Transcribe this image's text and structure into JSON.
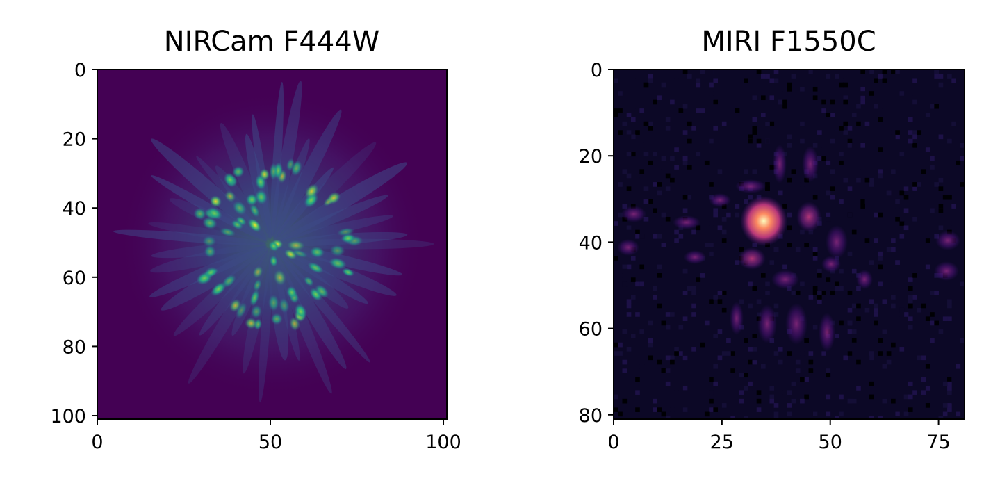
{
  "chart_data": [
    {
      "type": "heatmap",
      "title": "NIRCam F444W",
      "xlabel": "",
      "ylabel": "",
      "xlim": [
        0,
        101
      ],
      "ylim": [
        101,
        0
      ],
      "xticks": [
        0,
        50,
        100
      ],
      "yticks": [
        0,
        20,
        40,
        60,
        80,
        100
      ],
      "xtick_labels": [
        "0",
        "50",
        "100"
      ],
      "ytick_labels": [
        "0",
        "20",
        "40",
        "60",
        "80",
        "100"
      ],
      "colormap": "viridis",
      "grid": false,
      "image_size": [
        101,
        101
      ],
      "peak_location": [
        50,
        50
      ],
      "background_color": "#440154",
      "peak_color": "#fde725"
    },
    {
      "type": "heatmap",
      "title": "MIRI F1550C",
      "xlabel": "",
      "ylabel": "",
      "xlim": [
        0,
        81
      ],
      "ylim": [
        81,
        0
      ],
      "xticks": [
        0,
        25,
        50,
        75
      ],
      "yticks": [
        0,
        20,
        40,
        60,
        80
      ],
      "xtick_labels": [
        "0",
        "25",
        "50",
        "75"
      ],
      "ytick_labels": [
        "0",
        "20",
        "40",
        "60",
        "80"
      ],
      "colormap": "magma",
      "grid": false,
      "image_size": [
        81,
        81
      ],
      "peak_location": [
        35,
        35
      ],
      "background_color": "#0c0826",
      "peak_color": "#fcfdbf"
    }
  ]
}
